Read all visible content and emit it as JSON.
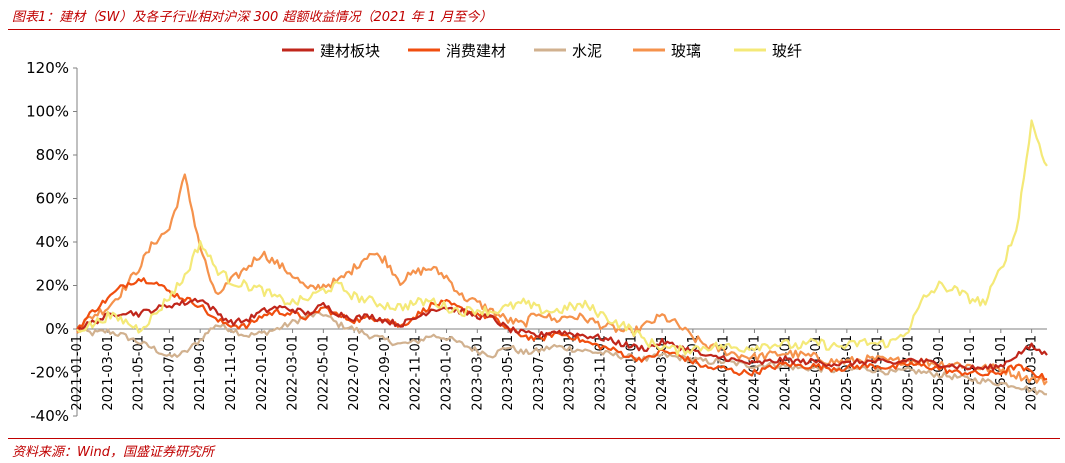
{
  "header": {
    "title": "图表1：建材（SW）及各子行业相对沪深 300 超额收益情况（2021 年 1 月至今）"
  },
  "footer": {
    "source": "资料来源：Wind，国盛证券研究所"
  },
  "colors": {
    "accent": "#c00000"
  },
  "chart_data": {
    "type": "line",
    "title": "",
    "xlabel": "",
    "ylabel": "",
    "ylim": [
      -40,
      120
    ],
    "yticks": [
      -40,
      -20,
      0,
      20,
      40,
      60,
      80,
      100,
      120
    ],
    "ytick_labels": [
      "-40%",
      "-20%",
      "0%",
      "20%",
      "40%",
      "60%",
      "80%",
      "100%",
      "120%"
    ],
    "grid": false,
    "legend_position": "top",
    "x": [
      "2021-01",
      "2021-02",
      "2021-03",
      "2021-04",
      "2021-05",
      "2021-06",
      "2021-07",
      "2021-08",
      "2021-09",
      "2021-10",
      "2021-11",
      "2021-12",
      "2022-01",
      "2022-02",
      "2022-03",
      "2022-04",
      "2022-05",
      "2022-06",
      "2022-07",
      "2022-08",
      "2022-09",
      "2022-10",
      "2022-11",
      "2022-12",
      "2023-01",
      "2023-02",
      "2023-03",
      "2023-04",
      "2023-05",
      "2023-06",
      "2023-07",
      "2023-08",
      "2023-09",
      "2023-10",
      "2023-11",
      "2023-12",
      "2024-01",
      "2024-02",
      "2024-03",
      "2024-04",
      "2024-05",
      "2024-06",
      "2024-07",
      "2024-08",
      "2024-09",
      "2024-10",
      "2024-11",
      "2024-12",
      "2025-01",
      "2025-02",
      "2025-03",
      "2025-04",
      "2025-05",
      "2025-06",
      "2025-07",
      "2025-08",
      "2025-09",
      "2025-10",
      "2025-11",
      "2025-12",
      "2026-01",
      "2026-02",
      "2026-03",
      "2026-04"
    ],
    "xtick_labels": [
      "2021-01-01",
      "2021-03-01",
      "2021-05-01",
      "2021-07-01",
      "2021-09-01",
      "2021-11-01",
      "2022-01-01",
      "2022-03-01",
      "2022-05-01",
      "2022-07-01",
      "2022-09-01",
      "2022-11-01",
      "2023-01-01",
      "2023-03-01",
      "2023-05-01",
      "2023-07-01",
      "2023-09-01",
      "2023-11-01",
      "2024-01-01",
      "2024-03-01",
      "2024-05-01",
      "2024-07-01",
      "2024-09-01",
      "2024-11-01",
      "2025-01-01",
      "2025-03-01",
      "2025-05-01",
      "2025-07-01",
      "2025-09-01",
      "2025-11-01",
      "2026-01-01",
      "2026-03-01"
    ],
    "series": [
      {
        "name": "建材板块",
        "color": "#c0261b",
        "values": [
          0,
          3,
          6,
          8,
          7,
          9,
          11,
          12,
          14,
          8,
          3,
          4,
          8,
          10,
          9,
          7,
          11,
          7,
          5,
          6,
          4,
          2,
          5,
          9,
          10,
          8,
          6,
          5,
          0,
          -2,
          -3,
          -1,
          -2,
          -3,
          -4,
          -6,
          -8,
          -9,
          -6,
          -8,
          -10,
          -13,
          -13,
          -15,
          -16,
          -15,
          -14,
          -15,
          -15,
          -16,
          -16,
          -15,
          -15,
          -16,
          -14,
          -15,
          -16,
          -17,
          -18,
          -18,
          -17,
          -12,
          -8,
          -12
        ]
      },
      {
        "name": "消费建材",
        "color": "#f04e0f",
        "values": [
          0,
          8,
          14,
          20,
          23,
          22,
          17,
          14,
          11,
          4,
          2,
          1,
          6,
          8,
          7,
          5,
          10,
          6,
          4,
          5,
          5,
          1,
          6,
          11,
          12,
          9,
          7,
          5,
          0,
          -3,
          -5,
          -2,
          -3,
          -6,
          -8,
          -10,
          -13,
          -14,
          -10,
          -12,
          -15,
          -18,
          -18,
          -20,
          -20,
          -18,
          -16,
          -17,
          -17,
          -18,
          -18,
          -17,
          -17,
          -18,
          -16,
          -17,
          -18,
          -20,
          -20,
          -21,
          -20,
          -17,
          -20,
          -23
        ]
      },
      {
        "name": "水泥",
        "color": "#d1b18f",
        "values": [
          0,
          -2,
          -1,
          -3,
          -6,
          -9,
          -13,
          -11,
          -5,
          2,
          0,
          -3,
          -2,
          0,
          3,
          6,
          7,
          2,
          0,
          -3,
          -5,
          -7,
          -6,
          -3,
          -4,
          -7,
          -10,
          -12,
          -8,
          -11,
          -10,
          -8,
          -9,
          -10,
          -11,
          -12,
          -13,
          -14,
          -12,
          -13,
          -14,
          -15,
          -15,
          -16,
          -17,
          -16,
          -17,
          -18,
          -18,
          -19,
          -19,
          -18,
          -19,
          -20,
          -19,
          -20,
          -21,
          -22,
          -23,
          -24,
          -25,
          -26,
          -28,
          -30
        ]
      },
      {
        "name": "玻璃",
        "color": "#f5924c",
        "values": [
          0,
          6,
          10,
          18,
          28,
          40,
          46,
          70,
          38,
          15,
          22,
          28,
          35,
          30,
          25,
          18,
          20,
          22,
          28,
          35,
          32,
          22,
          26,
          28,
          24,
          15,
          12,
          8,
          4,
          2,
          8,
          4,
          6,
          5,
          2,
          0,
          -2,
          2,
          6,
          2,
          -4,
          -8,
          -10,
          -12,
          -13,
          -12,
          -11,
          -12,
          -13,
          -15,
          -15,
          -14,
          -14,
          -15,
          -14,
          -15,
          -16,
          -16,
          -17,
          -18,
          -18,
          -21,
          -23,
          -24
        ]
      },
      {
        "name": "玻纤",
        "color": "#f4e978",
        "values": [
          0,
          2,
          6,
          4,
          0,
          6,
          15,
          24,
          40,
          28,
          22,
          20,
          18,
          14,
          12,
          14,
          18,
          20,
          15,
          13,
          11,
          10,
          12,
          13,
          10,
          8,
          9,
          8,
          10,
          12,
          9,
          8,
          10,
          11,
          7,
          3,
          0,
          -6,
          -8,
          -10,
          -9,
          -8,
          -8,
          -9,
          -8,
          -7,
          -7,
          -8,
          -6,
          -8,
          -8,
          -6,
          -7,
          -6,
          0,
          14,
          20,
          18,
          14,
          12,
          28,
          45,
          95,
          75
        ]
      }
    ]
  }
}
